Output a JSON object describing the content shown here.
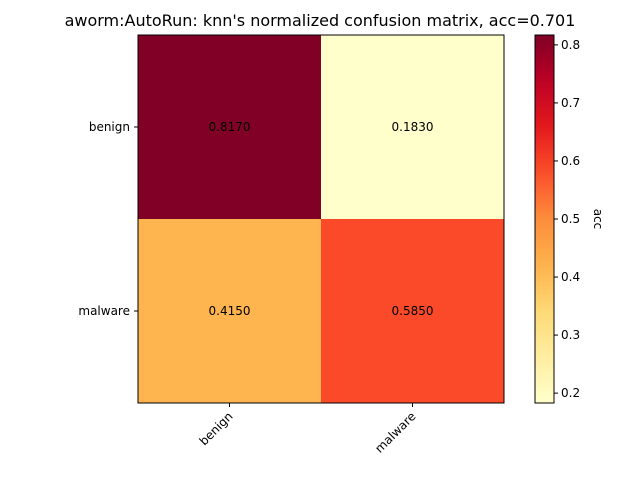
{
  "chart_data": {
    "type": "heatmap",
    "title": "aworm:AutoRun: knn's normalized confusion matrix, acc=0.701",
    "row_labels": [
      "benign",
      "malware"
    ],
    "col_labels": [
      "benign",
      "malware"
    ],
    "values": [
      [
        0.817,
        0.183
      ],
      [
        0.415,
        0.585
      ]
    ],
    "value_labels": [
      [
        "0.8170",
        "0.1830"
      ],
      [
        "0.4150",
        "0.5850"
      ]
    ],
    "colorbar": {
      "label": "acc",
      "range": [
        0.183,
        0.817
      ],
      "ticks": [
        0.2,
        0.3,
        0.4,
        0.5,
        0.6,
        0.7,
        0.8
      ],
      "tick_labels": [
        "0.2",
        "0.3",
        "0.4",
        "0.5",
        "0.6",
        "0.7",
        "0.8"
      ],
      "colormap": "YlOrRd"
    },
    "grid": false,
    "legend": "none"
  }
}
